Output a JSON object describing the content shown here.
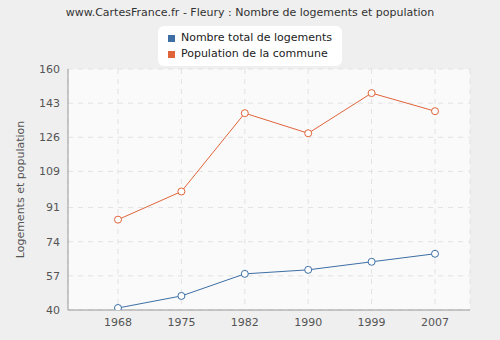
{
  "chart_data": {
    "type": "line",
    "title": "www.CartesFrance.fr - Fleury : Nombre de logements et population",
    "y_label": "Logements et population",
    "categories": [
      "1968",
      "1975",
      "1982",
      "1990",
      "1999",
      "2007"
    ],
    "series": [
      {
        "name": "Nombre total de logements",
        "color": "#3d6fa5",
        "values": [
          41,
          47,
          58,
          60,
          64,
          68
        ],
        "marker": "circle"
      },
      {
        "name": "Population de la commune",
        "color": "#e0643a",
        "values": [
          85,
          99,
          138,
          128,
          148,
          139
        ],
        "marker": "circle"
      }
    ],
    "ylim": [
      40,
      160
    ],
    "yticks": [
      40,
      57,
      74,
      91,
      109,
      126,
      143,
      160
    ],
    "grid": true,
    "legend": "top"
  }
}
